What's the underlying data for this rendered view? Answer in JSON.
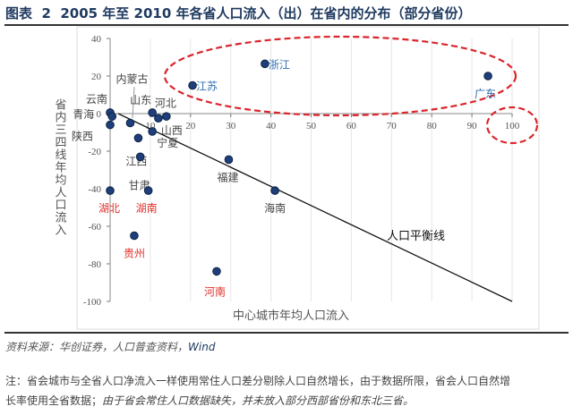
{
  "title": "图表  2  2005 年至 2010 年各省人口流入（出）在省内的分布（部分省份）",
  "source": {
    "label": "资料来源：华创证券，人口普查资料，",
    "wind": "Wind"
  },
  "note": {
    "line1": "注：省会城市与全省人口净流入一样使用常住人口差分剔除人口自然增长，由于数据所限，省会人口自然增",
    "line2a": "长率使用全省数据；",
    "line2b": "由于省会常住人口数据缺失，并未放入部分西部省份和东北三省。"
  },
  "chart_data": {
    "type": "scatter",
    "xlabel": "中心城市年均人口流入",
    "ylabel": "省内三四线年均人口流入",
    "xlim": [
      0,
      100
    ],
    "ylim": [
      -100,
      40
    ],
    "xticks": [
      "10",
      "20",
      "30",
      "40",
      "50",
      "60",
      "70",
      "80",
      "90",
      "100"
    ],
    "yticks": [
      "40",
      "20",
      "0",
      "-20",
      "-40",
      "-60",
      "-80",
      "-100"
    ],
    "grid": "vertical",
    "marker_color": "#1f3f7a",
    "points": [
      {
        "name": "云南",
        "x": 0,
        "y": 0.5,
        "color": "#444444"
      },
      {
        "name": "青海",
        "x": 0.5,
        "y": -1.5,
        "color": "#444444"
      },
      {
        "name": "陕西",
        "x": 0,
        "y": -6,
        "color": "#444444"
      },
      {
        "name": "内蒙古",
        "x": 5,
        "y": -5,
        "color": "#444444"
      },
      {
        "name": "山东",
        "x": 10.5,
        "y": 0.5,
        "color": "#444444"
      },
      {
        "name": "河北",
        "x": 12,
        "y": -2.5,
        "color": "#444444"
      },
      {
        "name": "山西",
        "x": 14,
        "y": -1.5,
        "color": "#444444"
      },
      {
        "name": "宁夏",
        "x": 10.5,
        "y": -9.5,
        "color": "#444444"
      },
      {
        "name": "江西",
        "x": 7,
        "y": -13,
        "color": "#444444"
      },
      {
        "name": "甘肃",
        "x": 7.5,
        "y": -23,
        "color": "#444444"
      },
      {
        "name": "湖北",
        "x": 0,
        "y": -41,
        "color": "#e0302a"
      },
      {
        "name": "湖南",
        "x": 9.5,
        "y": -41,
        "color": "#e0302a"
      },
      {
        "name": "贵州",
        "x": 6,
        "y": -65,
        "color": "#e0302a"
      },
      {
        "name": "福建",
        "x": 29.5,
        "y": -24.5,
        "color": "#444444"
      },
      {
        "name": "海南",
        "x": 41,
        "y": -41,
        "color": "#444444"
      },
      {
        "name": "河南",
        "x": 26.5,
        "y": -84,
        "color": "#e0302a"
      },
      {
        "name": "江苏",
        "x": 20.5,
        "y": 15,
        "color": "#2f6fb0"
      },
      {
        "name": "浙江",
        "x": 38.5,
        "y": 26.5,
        "color": "#2f6fb0"
      },
      {
        "name": "广东",
        "x": 94,
        "y": 20,
        "color": "#2f6fb0"
      }
    ],
    "balance_line": {
      "label": "人口平衡线",
      "from": [
        2,
        0
      ],
      "to": [
        100,
        -100
      ]
    },
    "highlight_color": "#d9262c"
  }
}
